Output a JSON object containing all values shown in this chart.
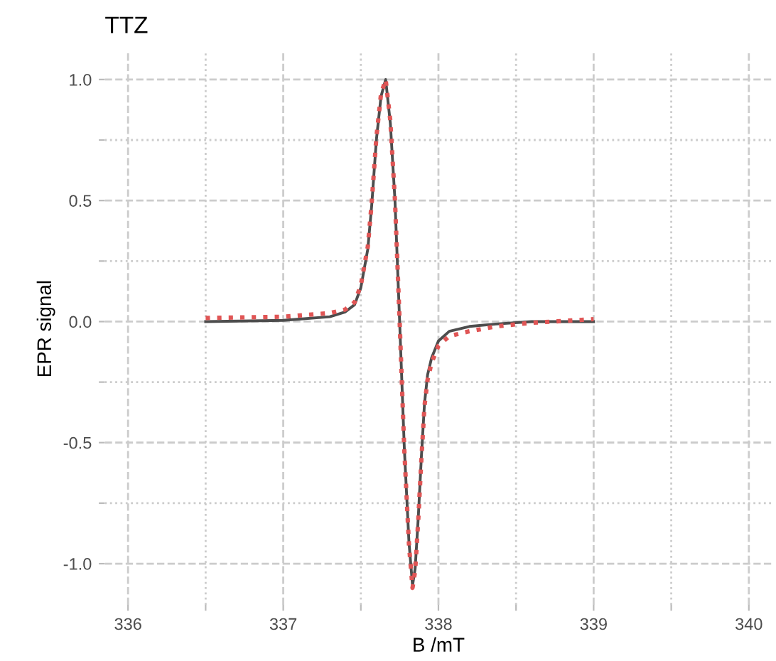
{
  "chart_data": {
    "type": "line",
    "title": "TTZ",
    "xlabel": "B /mT",
    "ylabel": "EPR signal",
    "xlim": [
      335.85,
      340.15
    ],
    "ylim": [
      -1.17,
      1.11
    ],
    "xticks": [
      {
        "value": 336,
        "label": "336"
      },
      {
        "value": 336.5,
        "label": null
      },
      {
        "value": 337,
        "label": "337"
      },
      {
        "value": 337.5,
        "label": null
      },
      {
        "value": 338,
        "label": "338"
      },
      {
        "value": 338.5,
        "label": null
      },
      {
        "value": 339,
        "label": "339"
      },
      {
        "value": 339.5,
        "label": null
      },
      {
        "value": 340,
        "label": "340"
      }
    ],
    "yticks": [
      {
        "value": -1,
        "label": "-1.0"
      },
      {
        "value": -0.75,
        "label": null
      },
      {
        "value": -0.5,
        "label": "-0.5"
      },
      {
        "value": -0.25,
        "label": null
      },
      {
        "value": 0,
        "label": "0.0"
      },
      {
        "value": 0.25,
        "label": null
      },
      {
        "value": 0.5,
        "label": "0.5"
      },
      {
        "value": 0.75,
        "label": null
      },
      {
        "value": 1,
        "label": "1.0"
      }
    ],
    "grid": true,
    "legend": false,
    "series": [
      {
        "color": "#4d4d4d",
        "line_style": "solid",
        "x": [
          336.5,
          337.0,
          337.3,
          337.4,
          337.46,
          337.5,
          337.545,
          337.57,
          337.6,
          337.63,
          337.66,
          337.69,
          337.72,
          337.75,
          337.78,
          337.81,
          337.833,
          337.85,
          337.87,
          337.89,
          337.91,
          337.93,
          337.956,
          338.0,
          338.07,
          338.2,
          338.37,
          338.6,
          339.0
        ],
        "values": [
          0.0,
          0.005,
          0.02,
          0.04,
          0.07,
          0.14,
          0.3,
          0.48,
          0.75,
          0.93,
          1.0,
          0.82,
          0.5,
          0.0,
          -0.52,
          -0.91,
          -1.09,
          -1.02,
          -0.81,
          -0.56,
          -0.34,
          -0.22,
          -0.15,
          -0.08,
          -0.04,
          -0.02,
          -0.01,
          0.0,
          0.0
        ]
      },
      {
        "color": "#e05555",
        "line_style": "dotted",
        "x": [
          336.5,
          337.0,
          337.3,
          337.4,
          337.46,
          337.5,
          337.545,
          337.57,
          337.6,
          337.63,
          337.66,
          337.69,
          337.72,
          337.75,
          337.78,
          337.81,
          337.833,
          337.85,
          337.87,
          337.89,
          337.91,
          337.93,
          337.956,
          338.0,
          338.07,
          338.2,
          338.37,
          338.6,
          339.0
        ],
        "values": [
          0.015,
          0.02,
          0.035,
          0.05,
          0.08,
          0.15,
          0.31,
          0.49,
          0.76,
          0.94,
          1.0,
          0.83,
          0.5,
          0.0,
          -0.53,
          -0.92,
          -1.1,
          -1.03,
          -0.82,
          -0.57,
          -0.35,
          -0.24,
          -0.17,
          -0.1,
          -0.06,
          -0.04,
          -0.02,
          -0.005,
          0.01
        ]
      }
    ]
  }
}
